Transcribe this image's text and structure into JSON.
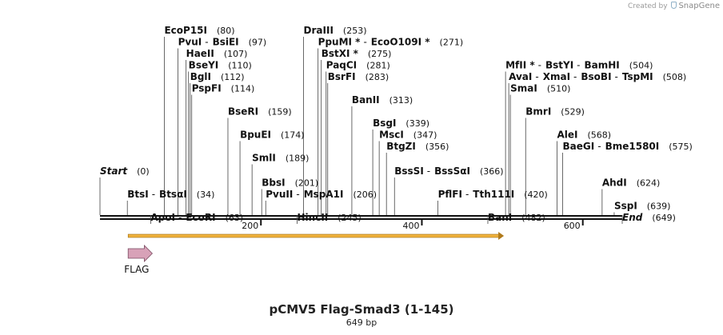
{
  "credit": {
    "prefix": "Created by",
    "brand": "SnapGene"
  },
  "title": "pCMV5 Flag-Smad3 (1-145)",
  "subtitle": "649 bp",
  "sequence_length": 649,
  "ruler_ticks": [
    {
      "value": 200,
      "label": "200"
    },
    {
      "value": 400,
      "label": "400"
    },
    {
      "value": 600,
      "label": "600"
    }
  ],
  "sites": [
    {
      "names": [
        "EcoP15I"
      ],
      "pos_label": "(80)",
      "position": 80,
      "row": 0
    },
    {
      "names": [
        "DraIII"
      ],
      "pos_label": "(253)",
      "position": 253,
      "row": 0
    },
    {
      "names": [
        "PvuI",
        "BsiEI"
      ],
      "pos_label": "(97)",
      "position": 97,
      "row": 1
    },
    {
      "names": [
        "PpuMI *",
        "EcoO109I *"
      ],
      "pos_label": "(271)",
      "position": 271,
      "row": 1
    },
    {
      "names": [
        "HaeII"
      ],
      "pos_label": "(107)",
      "position": 107,
      "row": 2
    },
    {
      "names": [
        "BstXI *"
      ],
      "pos_label": "(275)",
      "position": 275,
      "row": 2
    },
    {
      "names": [
        "BseYI"
      ],
      "pos_label": "(110)",
      "position": 110,
      "row": 3
    },
    {
      "names": [
        "PaqCI"
      ],
      "pos_label": "(281)",
      "position": 281,
      "row": 3
    },
    {
      "names": [
        "MfII *",
        "BstYI",
        "BamHI"
      ],
      "pos_label": "(504)",
      "position": 504,
      "row": 3
    },
    {
      "names": [
        "BglI"
      ],
      "pos_label": "(112)",
      "position": 112,
      "row": 4
    },
    {
      "names": [
        "BsrFI"
      ],
      "pos_label": "(283)",
      "position": 283,
      "row": 4
    },
    {
      "names": [
        "AvaI",
        "XmaI",
        "BsoBI",
        "TspMI"
      ],
      "pos_label": "(508)",
      "position": 508,
      "row": 4
    },
    {
      "names": [
        "PspFI"
      ],
      "pos_label": "(114)",
      "position": 114,
      "row": 5
    },
    {
      "names": [
        "SmaI"
      ],
      "pos_label": "(510)",
      "position": 510,
      "row": 5
    },
    {
      "names": [
        "BanII"
      ],
      "pos_label": "(313)",
      "position": 313,
      "row": 6
    },
    {
      "names": [
        "BseRI"
      ],
      "pos_label": "(159)",
      "position": 159,
      "row": 7
    },
    {
      "names": [
        "BmrI"
      ],
      "pos_label": "(529)",
      "position": 529,
      "row": 7
    },
    {
      "names": [
        "BsgI"
      ],
      "pos_label": "(339)",
      "position": 339,
      "row": 8
    },
    {
      "names": [
        "BpuEI"
      ],
      "pos_label": "(174)",
      "position": 174,
      "row": 9
    },
    {
      "names": [
        "MscI"
      ],
      "pos_label": "(347)",
      "position": 347,
      "row": 9
    },
    {
      "names": [
        "AleI"
      ],
      "pos_label": "(568)",
      "position": 568,
      "row": 9
    },
    {
      "names": [
        "BtgZI"
      ],
      "pos_label": "(356)",
      "position": 356,
      "row": 10
    },
    {
      "names": [
        "BaeGI",
        "Bme1580I"
      ],
      "pos_label": "(575)",
      "position": 575,
      "row": 10
    },
    {
      "names": [
        "SmlI"
      ],
      "pos_label": "(189)",
      "position": 189,
      "row": 11
    },
    {
      "names": [
        "Start"
      ],
      "pos_label": "(0)",
      "position": 0,
      "row": 12,
      "italic": true
    },
    {
      "names": [
        "BssSI",
        "BssSαI"
      ],
      "pos_label": "(366)",
      "position": 366,
      "row": 12
    },
    {
      "names": [
        "BbsI"
      ],
      "pos_label": "(201)",
      "position": 201,
      "row": 13
    },
    {
      "names": [
        "AhdI"
      ],
      "pos_label": "(624)",
      "position": 624,
      "row": 13
    },
    {
      "names": [
        "BtsI",
        "BtsαI"
      ],
      "pos_label": "(34)",
      "position": 34,
      "row": 14
    },
    {
      "names": [
        "PvuII",
        "MspA1I"
      ],
      "pos_label": "(206)",
      "position": 206,
      "row": 14
    },
    {
      "names": [
        "PflFI",
        "Tth111I"
      ],
      "pos_label": "(420)",
      "position": 420,
      "row": 14
    },
    {
      "names": [
        "SspI"
      ],
      "pos_label": "(639)",
      "position": 639,
      "row": 15
    },
    {
      "names": [
        "ApoI",
        "EcoRI"
      ],
      "pos_label": "(63)",
      "position": 63,
      "row": 16
    },
    {
      "names": [
        "HincII"
      ],
      "pos_label": "(245)",
      "position": 245,
      "row": 16
    },
    {
      "names": [
        "BanI"
      ],
      "pos_label": "(482)",
      "position": 482,
      "row": 16
    },
    {
      "names": [
        "End"
      ],
      "pos_label": "(649)",
      "position": 649,
      "row": 16,
      "italic": true
    }
  ],
  "features": [
    {
      "name": "FLAG",
      "type": "arrow_feature",
      "start": 35,
      "end": 69,
      "color": "#d8a2b8"
    }
  ],
  "orf": {
    "start": 35,
    "end": 502,
    "color": "#f0b23c"
  },
  "colors": {
    "backbone": "#111111",
    "text": "#111111",
    "orf": "#f0b23c",
    "flag": "#d8a2b8"
  }
}
